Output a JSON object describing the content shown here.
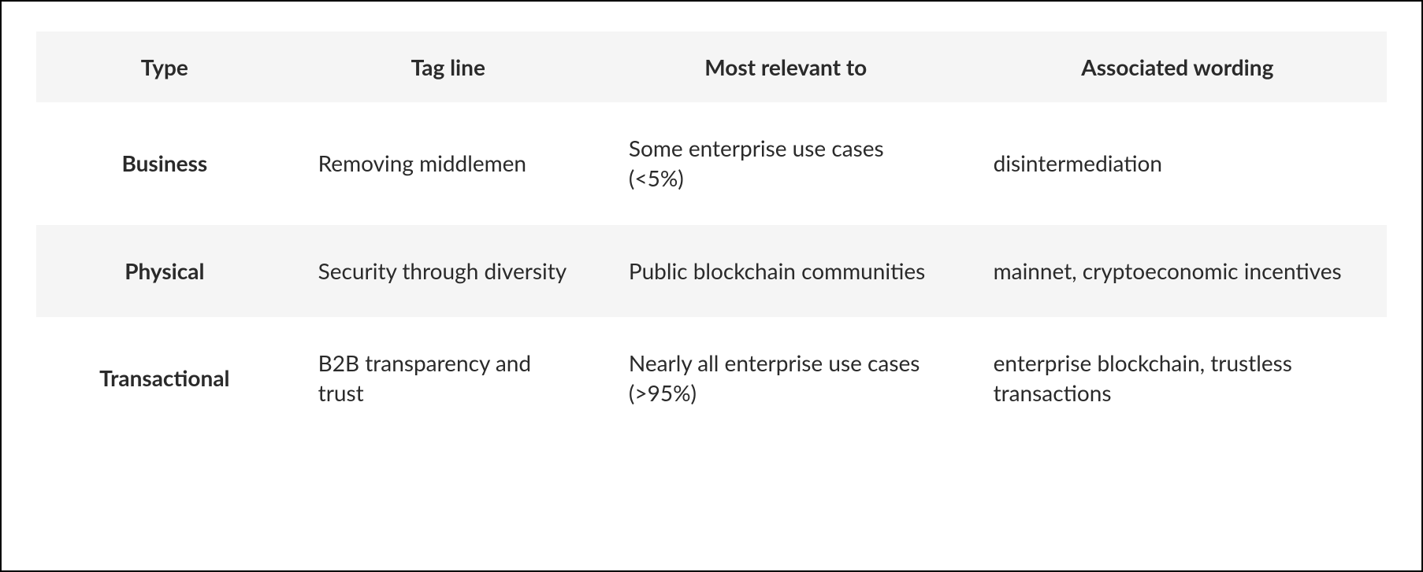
{
  "table": {
    "type": "table",
    "background_color": "#ffffff",
    "border_color": "#000000",
    "header_background": "#f5f5f5",
    "stripe_background": "#f5f5f5",
    "text_color": "#2a2a2a",
    "header_fontsize_pt": 21,
    "body_fontsize_pt": 21,
    "header_fontweight": 700,
    "type_column_fontweight": 700,
    "font_family": "Lato / Segoe UI / Helvetica Neue",
    "column_widths_pct": [
      19,
      23,
      27,
      31
    ],
    "columns": [
      "Type",
      "Tag line",
      "Most relevant to",
      "Associated wording"
    ],
    "rows": [
      {
        "type": "Business",
        "tagline": "Removing middlemen",
        "relevant": "Some enterprise use cases (<5%)",
        "wording": "disintermediation",
        "striped": false
      },
      {
        "type": "Physical",
        "tagline": "Security through diversity",
        "relevant": "Public blockchain communities",
        "wording": "mainnet, cryptoeconomic incentives",
        "striped": true
      },
      {
        "type": "Transactional",
        "tagline": "B2B transparency and trust",
        "relevant": "Nearly all enterprise use cases (>95%)",
        "wording": "enterprise blockchain, trustless transactions",
        "striped": false
      }
    ]
  }
}
